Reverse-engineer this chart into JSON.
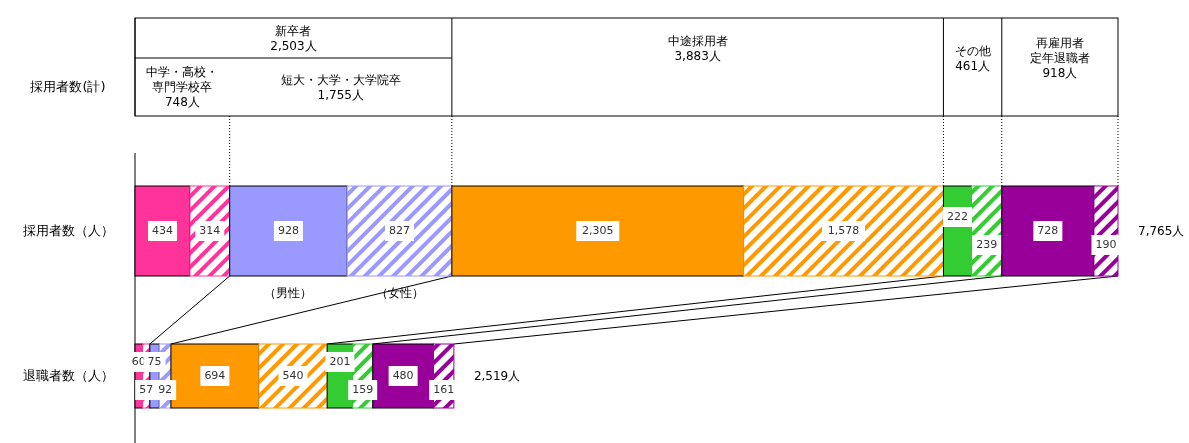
{
  "chart_data": {
    "type": "bar",
    "orientation": "horizontal",
    "stacked": true,
    "categories": [
      "採用者数（人）",
      "退職者数（人）"
    ],
    "series": [
      {
        "color": "#ff3399",
        "values": [
          434,
          60
        ],
        "value_labels": [
          "434",
          "60"
        ]
      },
      {
        "color": "#ff3399",
        "values": [
          314,
          57
        ],
        "value_labels": [
          "314",
          "57"
        ]
      },
      {
        "color": "#9999ff",
        "values": [
          928,
          75
        ],
        "value_labels": [
          "928",
          "75"
        ]
      },
      {
        "color": "#9999ff",
        "values": [
          827,
          92
        ],
        "value_labels": [
          "827",
          "92"
        ]
      },
      {
        "color": "#ff9900",
        "values": [
          2305,
          694
        ],
        "value_labels": [
          "2,305",
          "694"
        ]
      },
      {
        "color": "#ff9900",
        "values": [
          1578,
          540
        ],
        "value_labels": [
          "1,578",
          "540"
        ]
      },
      {
        "color": "#33cc33",
        "values": [
          222,
          201
        ],
        "value_labels": [
          "222",
          "201"
        ]
      },
      {
        "color": "#33cc33",
        "values": [
          239,
          159
        ],
        "value_labels": [
          "239",
          "159"
        ]
      },
      {
        "color": "#990099",
        "values": [
          728,
          480
        ],
        "value_labels": [
          "728",
          "480"
        ]
      },
      {
        "color": "#990099",
        "values": [
          190,
          161
        ],
        "value_labels": [
          "190",
          "161"
        ]
      }
    ],
    "totals": [
      "7,765人",
      "2,519人"
    ],
    "ref_lines": [
      {
        "axis": "x",
        "value": 748,
        "color": "#000000",
        "line_style": "dotted"
      },
      {
        "axis": "x",
        "value": 2503,
        "color": "#000000",
        "line_style": "dotted"
      },
      {
        "axis": "x",
        "value": 6386,
        "color": "#000000",
        "line_style": "dotted"
      },
      {
        "axis": "x",
        "value": 6847,
        "color": "#000000",
        "line_style": "dotted"
      },
      {
        "axis": "x",
        "value": 7765,
        "color": "#000000",
        "line_style": "dotted"
      }
    ],
    "annotations": [
      "採用者数(計)",
      "新卒者\n2,503人",
      "中学・高校・専門学校卒\n748人",
      "短大・大学・大学院卒\n1,755人",
      "中途採用者\n3,883人",
      "その他\n461人",
      "再雇用者定年退職者\n918人",
      "（男性）",
      "（女性）"
    ]
  }
}
